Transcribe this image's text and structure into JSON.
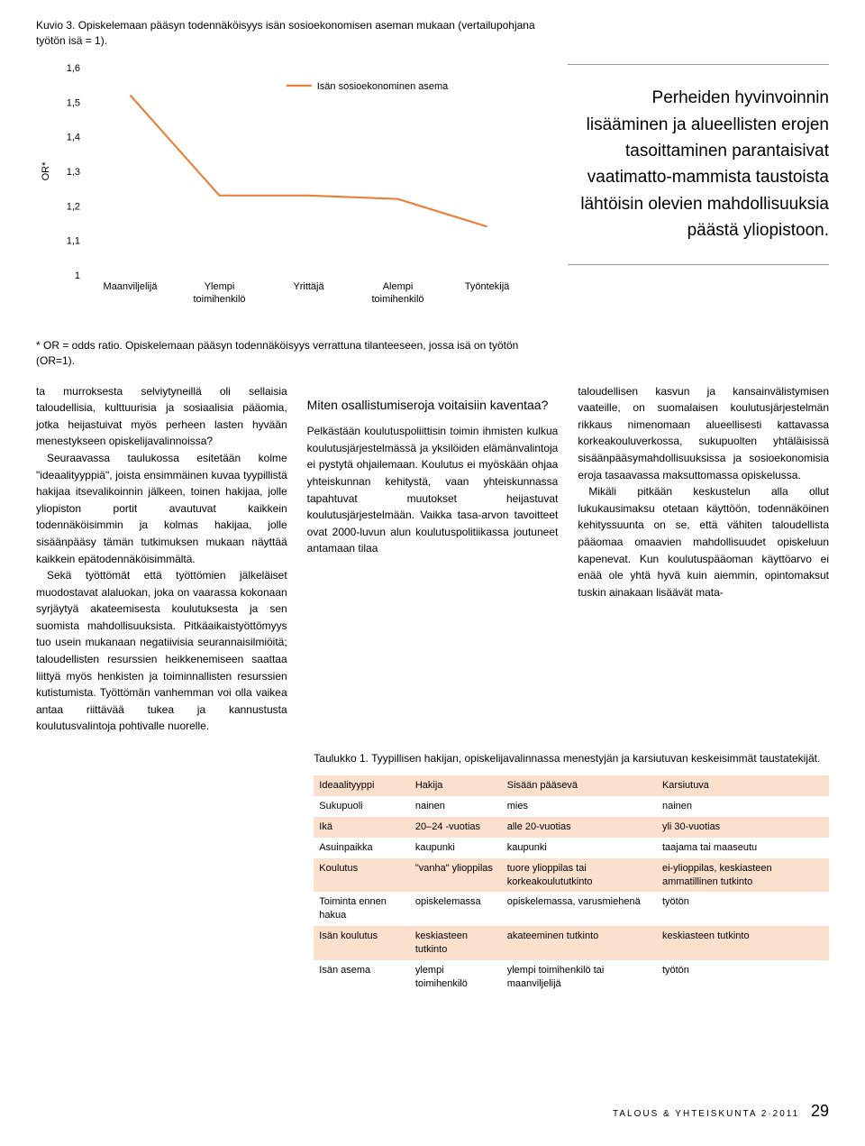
{
  "chart": {
    "caption": "Kuvio 3. Opiskelemaan pääsyn todennäköisyys isän sosioekonomisen aseman mukaan (vertailupohjana työtön isä = 1).",
    "type": "line",
    "legend": "Isän sosioekonominen asema",
    "ylabel": "OR*",
    "ylim": [
      1,
      1.6
    ],
    "ytick_step": 0.1,
    "yticks": [
      "1",
      "1,1",
      "1,2",
      "1,3",
      "1,4",
      "1,5",
      "1,6"
    ],
    "categories": [
      "Maanviljelijä",
      "Ylempi toimihenkilö",
      "Yrittäjä",
      "Alempi toimihenkilö",
      "Työntekijä"
    ],
    "values": [
      1.52,
      1.23,
      1.23,
      1.22,
      1.14
    ],
    "line_color": "#e8813b",
    "line_width": 2.2,
    "text_color": "#0b4f8f",
    "grid_color": "#d0d0d0",
    "background_color": "#ffffff",
    "fontsize": 11
  },
  "pullquote": "Perheiden hyvinvoinnin lisääminen ja alueellisten erojen tasoittaminen parantaisivat vaatimatto-mammista taustoista lähtöisin olevien mahdollisuuksia päästä yliopistoon.",
  "footnote": "* OR = odds ratio. Opiskelemaan pääsyn todennäköisyys verrattuna tilanteeseen, jossa isä on työtön (OR=1).",
  "col1": {
    "p1": "ta murroksesta selviytyneillä oli sellaisia taloudellisia, kulttuurisia ja sosiaalisia pääomia, jotka heijastuivat myös perheen lasten hyvään menestykseen opiskelijavalinnoissa?",
    "p2": "Seuraavassa taulukossa esitetään kolme \"ideaalityyppiä\", joista ensimmäinen kuvaa tyypillistä hakijaa itsevalikoinnin jälkeen, toinen hakijaa, jolle yliopiston portit avautuvat kaikkein todennäköisimmin ja kolmas hakijaa, jolle sisäänpääsy tämän tutkimuksen mukaan näyttää kaikkein epätodennäköisimmältä.",
    "p3": "Sekä työttömät että työttömien jälkeläiset muodostavat alaluokan, joka on vaarassa kokonaan syrjäytyä akateemisesta koulutuksesta ja sen suomista mahdollisuuksista. Pitkäaikaistyöttömyys tuo usein mukanaan negatiivisia seurannaisilmiöitä; taloudellisten resurssien heikkenemiseen saattaa liittyä myös henkisten ja toiminnallisten resurssien kutistumista. Työttömän vanhemman voi olla vaikea antaa riittävää tukea ja kannustusta koulutusvalintoja pohtivalle nuorelle."
  },
  "col2": {
    "h": "Miten osallistumiseroja voitaisiin kaventaa?",
    "p1": "Pelkästään koulutuspoliittisin toimin ihmisten kulkua koulutusjärjestelmässä ja yksilöiden elämänvalintoja ei pystytä ohjailemaan. Koulutus ei myöskään ohjaa yhteiskunnan kehitystä, vaan yhteiskunnassa tapahtuvat muutokset heijastuvat koulutusjärjestelmään. Vaikka tasa-arvon tavoitteet ovat 2000-luvun alun koulutuspolitiikassa joutuneet antamaan tilaa"
  },
  "col3": {
    "p1": "taloudellisen kasvun ja kansainvälistymisen vaateille, on suomalaisen koulutusjärjestelmän rikkaus nimenomaan alueellisesti kattavassa korkeakouluverkossa, sukupuolten yhtäläisissä sisäänpääsymahdollisuuksissa ja sosioekonomisia eroja tasaavassa maksuttomassa opiskelussa.",
    "p2": "Mikäli pitkään keskustelun alla ollut lukukausimaksu otetaan käyttöön, todennäköinen kehityssuunta on se, että vähiten taloudellista pääomaa omaavien mahdollisuudet opiskeluun kapenevat. Kun koulutuspääoman käyttöarvo ei enää ole yhtä hyvä kuin aiemmin, opintomaksut tuskin ainakaan lisäävät mata-"
  },
  "table": {
    "caption": "Taulukko 1. Tyypillisen hakijan, opiskelijavalinnassa menestyjän ja karsiutuvan keskeisimmät taustatekijät.",
    "columns": [
      "Ideaalityyppi",
      "Hakija",
      "Sisään pääsevä",
      "Karsiutuva"
    ],
    "rows": [
      [
        "Sukupuoli",
        "nainen",
        "mies",
        "nainen"
      ],
      [
        "Ikä",
        "20–24 -vuotias",
        "alle 20-vuotias",
        "yli 30-vuotias"
      ],
      [
        "Asuinpaikka",
        "kaupunki",
        "kaupunki",
        "taajama tai maaseutu"
      ],
      [
        "Koulutus",
        "\"vanha\" ylioppilas",
        "tuore ylioppilas tai korkeakoulututkinto",
        "ei-ylioppilas, keskiasteen ammatillinen tutkinto"
      ],
      [
        "Toiminta ennen hakua",
        "opiskelemassa",
        "opiskelemassa, varusmiehenä",
        "työtön"
      ],
      [
        "Isän koulutus",
        "keskiasteen tutkinto",
        "akateeminen tutkinto",
        "keskiasteen tutkinto"
      ],
      [
        "Isän asema",
        "ylempi toimihenkilö",
        "ylempi toimihenkilö tai maanviljelijä",
        "työtön"
      ]
    ],
    "odd_row_bg": "#fbe0ce"
  },
  "footer": {
    "text": "TALOUS & YHTEISKUNTA 2·2011",
    "page": "29"
  }
}
